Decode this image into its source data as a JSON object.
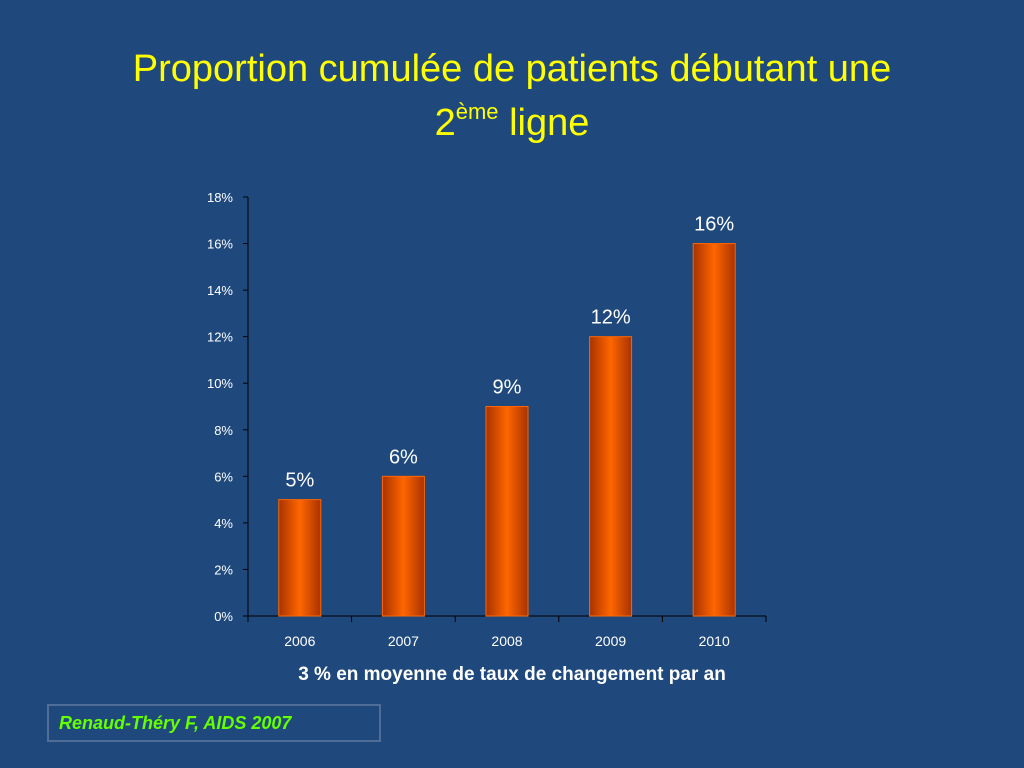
{
  "slide": {
    "title_line1": "Proportion cumulée de patients débutant une",
    "title_num": "2",
    "title_sup": "ème",
    "title_word": "ligne",
    "caption": "3 % en moyenne de taux de changement par an",
    "citation": "Renaud-Théry F, AIDS 2007"
  },
  "colors": {
    "background": "#1f497d",
    "title": "#ffff00",
    "citation": "#66ff00",
    "bar": "#ff6600",
    "bar_dark": "#a83300",
    "axis": "#000000",
    "text": "#ffffff"
  },
  "chart_data": {
    "type": "bar",
    "categories": [
      "2006",
      "2007",
      "2008",
      "2009",
      "2010"
    ],
    "values": [
      5,
      6,
      9,
      12,
      16
    ],
    "data_labels": [
      "5%",
      "6%",
      "9%",
      "12%",
      "16%"
    ],
    "ylim": [
      0,
      18
    ],
    "yticks": [
      0,
      2,
      4,
      6,
      8,
      10,
      12,
      14,
      16,
      18
    ],
    "ytick_labels": [
      "0%",
      "2%",
      "4%",
      "6%",
      "8%",
      "10%",
      "12%",
      "14%",
      "16%",
      "18%"
    ],
    "grid": false,
    "legend": "none"
  }
}
